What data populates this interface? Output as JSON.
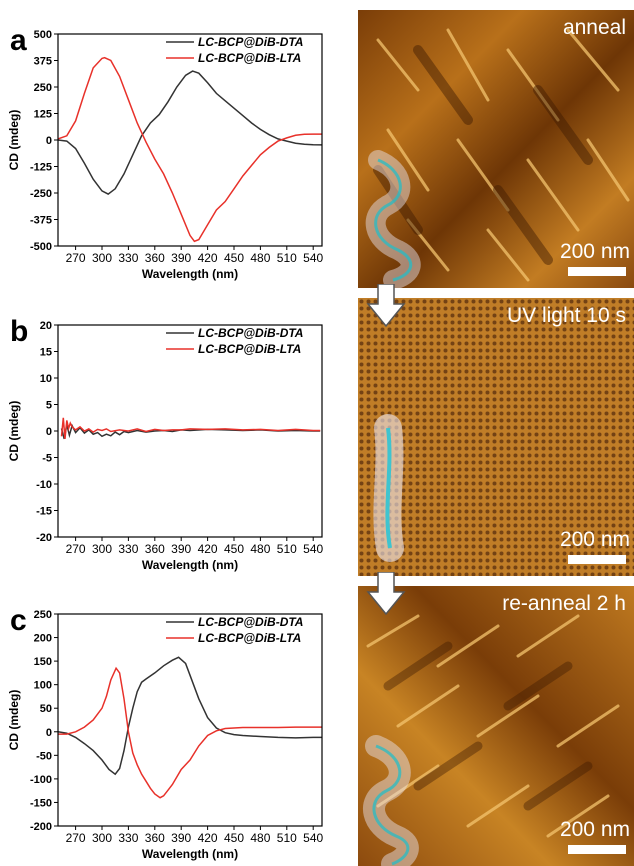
{
  "chart_data": [
    {
      "type": "line",
      "panel_label": "a",
      "xlabel": "Wavelength (nm)",
      "ylabel": "CD (mdeg)",
      "xlim": [
        250,
        550
      ],
      "ylim": [
        -500,
        500
      ],
      "xticks": [
        270,
        300,
        330,
        360,
        390,
        420,
        450,
        480,
        510,
        540
      ],
      "yticks": [
        -500,
        -375,
        -250,
        -125,
        0,
        125,
        250,
        375,
        500
      ],
      "legend_position": "top-right",
      "series": [
        {
          "name": "LC-BCP@DiB-DTA",
          "color": "#333333",
          "x": [
            250,
            260,
            270,
            280,
            290,
            300,
            307,
            315,
            325,
            335,
            345,
            355,
            365,
            375,
            385,
            395,
            403,
            410,
            420,
            430,
            440,
            450,
            460,
            470,
            480,
            490,
            500,
            510,
            520,
            530,
            540,
            550
          ],
          "y": [
            0,
            -5,
            -40,
            -110,
            -185,
            -240,
            -255,
            -230,
            -160,
            -70,
            20,
            80,
            120,
            180,
            250,
            305,
            325,
            315,
            270,
            220,
            185,
            150,
            115,
            80,
            50,
            25,
            5,
            -5,
            -15,
            -20,
            -22,
            -23
          ]
        },
        {
          "name": "LC-BCP@DiB-LTA",
          "color": "#e8312a",
          "x": [
            250,
            260,
            270,
            280,
            290,
            300,
            303,
            310,
            320,
            330,
            340,
            350,
            360,
            370,
            380,
            390,
            400,
            405,
            410,
            420,
            430,
            440,
            450,
            460,
            470,
            480,
            490,
            500,
            510,
            520,
            530,
            540,
            550
          ],
          "y": [
            5,
            20,
            90,
            220,
            340,
            385,
            388,
            375,
            300,
            190,
            80,
            -10,
            -90,
            -160,
            -250,
            -350,
            -450,
            -478,
            -470,
            -400,
            -330,
            -290,
            -230,
            -170,
            -120,
            -70,
            -35,
            -5,
            10,
            22,
            27,
            28,
            28
          ]
        }
      ]
    },
    {
      "type": "line",
      "panel_label": "b",
      "xlabel": "Wavelength (nm)",
      "ylabel": "CD (mdeg)",
      "xlim": [
        250,
        550
      ],
      "ylim": [
        -20,
        20
      ],
      "xticks": [
        270,
        300,
        330,
        360,
        390,
        420,
        450,
        480,
        510,
        540
      ],
      "yticks": [
        -20,
        -15,
        -10,
        -5,
        0,
        5,
        10,
        15,
        20
      ],
      "legend_position": "top-right",
      "series": [
        {
          "name": "LC-BCP@DiB-DTA",
          "color": "#333333",
          "x": [
            254,
            257,
            260,
            263,
            266,
            270,
            275,
            280,
            285,
            290,
            295,
            300,
            305,
            310,
            315,
            320,
            325,
            330,
            340,
            350,
            360,
            370,
            380,
            390,
            400,
            420,
            440,
            460,
            480,
            500,
            520,
            540,
            548
          ],
          "y": [
            0.5,
            -1.5,
            1.2,
            -0.8,
            1.0,
            -0.3,
            0.6,
            -0.4,
            0.2,
            -0.6,
            -0.3,
            -1.0,
            -0.6,
            -0.9,
            -0.2,
            -0.7,
            -0.1,
            -0.3,
            0.1,
            -0.2,
            0.0,
            0.1,
            -0.1,
            0.2,
            0.1,
            0.3,
            0.2,
            0.1,
            0.2,
            0.0,
            0.1,
            0.0,
            0.0
          ]
        },
        {
          "name": "LC-BCP@DiB-LTA",
          "color": "#e8312a",
          "x": [
            254,
            256,
            258,
            260,
            262,
            264,
            266,
            270,
            275,
            280,
            285,
            290,
            295,
            300,
            305,
            310,
            320,
            330,
            340,
            350,
            360,
            370,
            380,
            390,
            400,
            420,
            440,
            460,
            480,
            500,
            520,
            540,
            548
          ],
          "y": [
            -1.0,
            2.5,
            -1.5,
            2.0,
            0.5,
            1.5,
            0.8,
            0.2,
            0.8,
            0.0,
            0.4,
            -0.2,
            0.3,
            0.1,
            0.4,
            -0.1,
            0.2,
            0.0,
            0.4,
            -0.1,
            0.3,
            0.1,
            0.2,
            0.2,
            0.4,
            0.3,
            0.4,
            0.2,
            0.3,
            0.1,
            0.3,
            0.1,
            0.1
          ]
        }
      ]
    },
    {
      "type": "line",
      "panel_label": "c",
      "xlabel": "Wavelength (nm)",
      "ylabel": "CD (mdeg)",
      "xlim": [
        250,
        550
      ],
      "ylim": [
        -200,
        250
      ],
      "xticks": [
        270,
        300,
        330,
        360,
        390,
        420,
        450,
        480,
        510,
        540
      ],
      "yticks": [
        -200,
        -150,
        -100,
        -50,
        0,
        50,
        100,
        150,
        200,
        250
      ],
      "legend_position": "top-right",
      "series": [
        {
          "name": "LC-BCP@DiB-DTA",
          "color": "#333333",
          "x": [
            250,
            260,
            270,
            280,
            290,
            300,
            308,
            315,
            320,
            325,
            330,
            335,
            340,
            345,
            350,
            360,
            370,
            380,
            387,
            395,
            400,
            410,
            420,
            430,
            440,
            450,
            460,
            480,
            500,
            520,
            540,
            550
          ],
          "y": [
            0,
            -3,
            -12,
            -25,
            -40,
            -60,
            -80,
            -90,
            -78,
            -40,
            10,
            50,
            85,
            105,
            112,
            125,
            140,
            152,
            158,
            145,
            120,
            70,
            30,
            8,
            -2,
            -6,
            -8,
            -10,
            -12,
            -13,
            -12,
            -12
          ]
        },
        {
          "name": "LC-BCP@DiB-LTA",
          "color": "#e8312a",
          "x": [
            250,
            260,
            270,
            280,
            290,
            300,
            305,
            310,
            316,
            320,
            325,
            330,
            335,
            340,
            345,
            350,
            355,
            360,
            366,
            370,
            375,
            380,
            390,
            400,
            410,
            420,
            430,
            440,
            460,
            480,
            500,
            520,
            540,
            550
          ],
          "y": [
            -5,
            -5,
            0,
            10,
            25,
            50,
            75,
            110,
            135,
            125,
            70,
            0,
            -45,
            -70,
            -90,
            -105,
            -120,
            -132,
            -140,
            -136,
            -124,
            -112,
            -80,
            -60,
            -30,
            -8,
            2,
            7,
            9,
            9,
            9,
            10,
            10,
            10
          ]
        }
      ]
    }
  ],
  "afm_panels": [
    {
      "label": "anneal",
      "scale_label": "200 nm"
    },
    {
      "label": "UV light 10 s",
      "scale_label": "200 nm"
    },
    {
      "label": "re-anneal 2 h",
      "scale_label": "200 nm"
    }
  ]
}
